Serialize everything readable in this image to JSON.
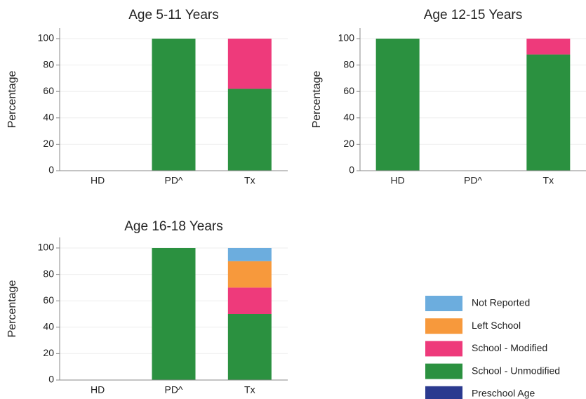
{
  "legend": [
    {
      "name": "Preschool Age",
      "color": "#2b3a8f"
    },
    {
      "name": "School - Unmodified",
      "color": "#2b9140"
    },
    {
      "name": "School - Modified",
      "color": "#ee3a7b"
    },
    {
      "name": "Left School",
      "color": "#f7993c"
    },
    {
      "name": "Not Reported",
      "color": "#6cadde"
    }
  ],
  "chart_data": [
    {
      "type": "bar",
      "stacked": true,
      "title": "Age 5-11 Years",
      "ylabel": "Percentage",
      "categories": [
        "HD",
        "PD^",
        "Tx"
      ],
      "ylim": [
        0,
        108
      ],
      "yticks": [
        0,
        20,
        40,
        60,
        80,
        100
      ],
      "grid": true,
      "series": [
        {
          "values": [
            0,
            0,
            0
          ]
        },
        {
          "values": [
            0,
            100,
            62
          ]
        },
        {
          "values": [
            0,
            0,
            38
          ]
        },
        {
          "values": [
            0,
            0,
            0
          ]
        },
        {
          "values": [
            0,
            0,
            0
          ]
        }
      ]
    },
    {
      "type": "bar",
      "stacked": true,
      "title": "Age 12-15 Years",
      "ylabel": "Percentage",
      "categories": [
        "HD",
        "PD^",
        "Tx"
      ],
      "ylim": [
        0,
        108
      ],
      "yticks": [
        0,
        20,
        40,
        60,
        80,
        100
      ],
      "grid": true,
      "series": [
        {
          "values": [
            0,
            0,
            0
          ]
        },
        {
          "values": [
            100,
            0,
            88
          ]
        },
        {
          "values": [
            0,
            0,
            12
          ]
        },
        {
          "values": [
            0,
            0,
            0
          ]
        },
        {
          "values": [
            0,
            0,
            0
          ]
        }
      ]
    },
    {
      "type": "bar",
      "stacked": true,
      "title": "Age 16-18 Years",
      "ylabel": "Percentage",
      "categories": [
        "HD",
        "PD^",
        "Tx"
      ],
      "ylim": [
        0,
        108
      ],
      "yticks": [
        0,
        20,
        40,
        60,
        80,
        100
      ],
      "grid": true,
      "series": [
        {
          "values": [
            0,
            0,
            0
          ]
        },
        {
          "values": [
            0,
            100,
            50
          ]
        },
        {
          "values": [
            0,
            0,
            20
          ]
        },
        {
          "values": [
            0,
            0,
            20
          ]
        },
        {
          "values": [
            0,
            0,
            10
          ]
        }
      ]
    }
  ]
}
